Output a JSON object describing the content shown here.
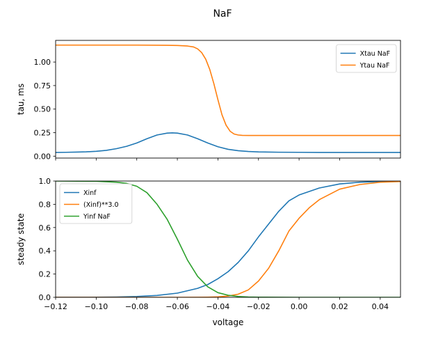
{
  "figure": {
    "title": "NaF"
  },
  "chart_data": [
    {
      "type": "line",
      "title": "",
      "xlabel": "",
      "ylabel": "tau, ms",
      "xlim": [
        -0.12,
        0.05
      ],
      "ylim": [
        -0.02,
        1.23
      ],
      "xticks": [
        -0.12,
        -0.1,
        -0.08,
        -0.06,
        -0.04,
        -0.02,
        0.0,
        0.02,
        0.04
      ],
      "show_xtick_labels": false,
      "yticks": [
        0.0,
        0.25,
        0.5,
        0.75,
        1.0
      ],
      "ytick_labels": [
        "0.00",
        "0.25",
        "0.50",
        "0.75",
        "1.00"
      ],
      "grid": false,
      "legend": "top-right",
      "series": [
        {
          "name": "Xtau NaF",
          "color": "#1f77b4",
          "x": [
            -0.12,
            -0.115,
            -0.11,
            -0.105,
            -0.1,
            -0.095,
            -0.09,
            -0.085,
            -0.08,
            -0.075,
            -0.07,
            -0.065,
            -0.0625,
            -0.06,
            -0.055,
            -0.05,
            -0.045,
            -0.04,
            -0.035,
            -0.03,
            -0.025,
            -0.02,
            -0.01,
            0.0,
            0.01,
            0.02,
            0.03,
            0.04,
            0.05
          ],
          "y": [
            0.04,
            0.041,
            0.043,
            0.046,
            0.052,
            0.062,
            0.08,
            0.105,
            0.14,
            0.185,
            0.225,
            0.245,
            0.248,
            0.245,
            0.225,
            0.185,
            0.14,
            0.1,
            0.073,
            0.058,
            0.05,
            0.045,
            0.042,
            0.041,
            0.04,
            0.04,
            0.04,
            0.04,
            0.04
          ]
        },
        {
          "name": "Ytau NaF",
          "color": "#ff7f0e",
          "x": [
            -0.12,
            -0.1,
            -0.08,
            -0.065,
            -0.06,
            -0.055,
            -0.052,
            -0.05,
            -0.048,
            -0.046,
            -0.044,
            -0.042,
            -0.04,
            -0.038,
            -0.036,
            -0.034,
            -0.032,
            -0.03,
            -0.028,
            -0.025,
            -0.02,
            0.0,
            0.02,
            0.05
          ],
          "y": [
            1.18,
            1.18,
            1.18,
            1.178,
            1.176,
            1.17,
            1.16,
            1.14,
            1.1,
            1.03,
            0.92,
            0.77,
            0.6,
            0.44,
            0.33,
            0.265,
            0.235,
            0.225,
            0.221,
            0.22,
            0.22,
            0.22,
            0.22,
            0.22
          ]
        }
      ]
    },
    {
      "type": "line",
      "title": "",
      "xlabel": "voltage",
      "ylabel": "steady state",
      "xlim": [
        -0.12,
        0.05
      ],
      "ylim": [
        0.0,
        1.0
      ],
      "xticks": [
        -0.12,
        -0.1,
        -0.08,
        -0.06,
        -0.04,
        -0.02,
        0.0,
        0.02,
        0.04
      ],
      "xtick_labels": [
        "−0.12",
        "−0.10",
        "−0.08",
        "−0.06",
        "−0.04",
        "−0.02",
        "0.00",
        "0.02",
        "0.04"
      ],
      "show_xtick_labels": true,
      "yticks": [
        0.0,
        0.2,
        0.4,
        0.6,
        0.8,
        1.0
      ],
      "ytick_labels": [
        "0.0",
        "0.2",
        "0.4",
        "0.6",
        "0.8",
        "1.0"
      ],
      "grid": false,
      "legend": "top-left",
      "series": [
        {
          "name": "Xinf",
          "color": "#1f77b4",
          "x": [
            -0.12,
            -0.11,
            -0.1,
            -0.09,
            -0.08,
            -0.07,
            -0.06,
            -0.05,
            -0.045,
            -0.04,
            -0.035,
            -0.03,
            -0.025,
            -0.02,
            -0.015,
            -0.01,
            -0.005,
            0.0,
            0.01,
            0.02,
            0.03,
            0.04,
            0.05
          ],
          "y": [
            0.0001,
            0.0003,
            0.001,
            0.003,
            0.007,
            0.016,
            0.036,
            0.077,
            0.11,
            0.16,
            0.22,
            0.3,
            0.4,
            0.52,
            0.63,
            0.74,
            0.83,
            0.88,
            0.94,
            0.975,
            0.99,
            0.996,
            0.998
          ]
        },
        {
          "name": "(Xinf)**3.0",
          "color": "#ff7f0e",
          "x": [
            -0.12,
            -0.1,
            -0.08,
            -0.06,
            -0.05,
            -0.045,
            -0.04,
            -0.035,
            -0.03,
            -0.025,
            -0.02,
            -0.015,
            -0.01,
            -0.005,
            0.0,
            0.005,
            0.01,
            0.02,
            0.03,
            0.04,
            0.05
          ],
          "y": [
            0.0,
            0.0,
            0.0,
            0.0,
            0.0005,
            0.0013,
            0.004,
            0.011,
            0.027,
            0.064,
            0.14,
            0.25,
            0.4,
            0.57,
            0.68,
            0.77,
            0.84,
            0.93,
            0.97,
            0.99,
            0.996
          ]
        },
        {
          "name": "Yinf NaF",
          "color": "#2ca02c",
          "x": [
            -0.12,
            -0.1,
            -0.09,
            -0.085,
            -0.08,
            -0.075,
            -0.07,
            -0.065,
            -0.06,
            -0.055,
            -0.05,
            -0.045,
            -0.04,
            -0.035,
            -0.03,
            -0.025,
            -0.02,
            0.0,
            0.05
          ],
          "y": [
            1.0,
            0.998,
            0.99,
            0.98,
            0.955,
            0.9,
            0.8,
            0.67,
            0.5,
            0.32,
            0.18,
            0.09,
            0.04,
            0.018,
            0.007,
            0.003,
            0.001,
            0.0,
            0.0
          ]
        }
      ]
    }
  ]
}
